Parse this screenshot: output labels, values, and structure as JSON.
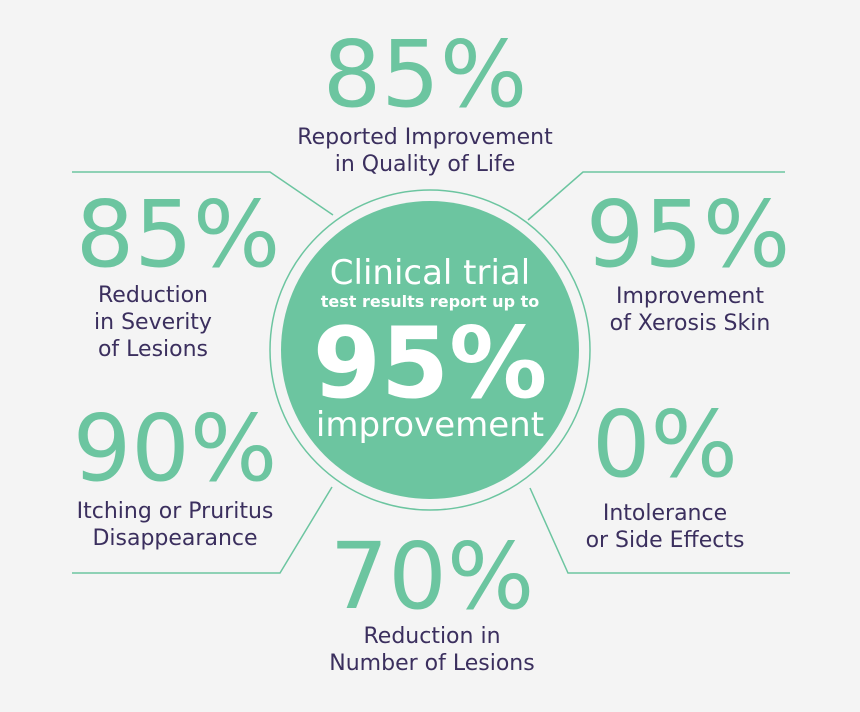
{
  "center": {
    "lines": [
      "Clinical trial",
      "test results report up to",
      "95%",
      "improvement"
    ]
  },
  "stats": [
    {
      "value": "85%",
      "label": [
        "Reported Improvement",
        "in Quality of Life"
      ]
    },
    {
      "value": "85%",
      "label": [
        "Reduction",
        "in Severity",
        "of Lesions"
      ]
    },
    {
      "value": "95%",
      "label": [
        "Improvement",
        "of Xerosis Skin"
      ]
    },
    {
      "value": "90%",
      "label": [
        "Itching or Pruritus",
        "Disappearance"
      ]
    },
    {
      "value": "0%",
      "label": [
        "Intolerance",
        "or Side Effects"
      ]
    },
    {
      "value": "70%",
      "label": [
        "Reduction in",
        "Number of Lesions"
      ]
    }
  ]
}
